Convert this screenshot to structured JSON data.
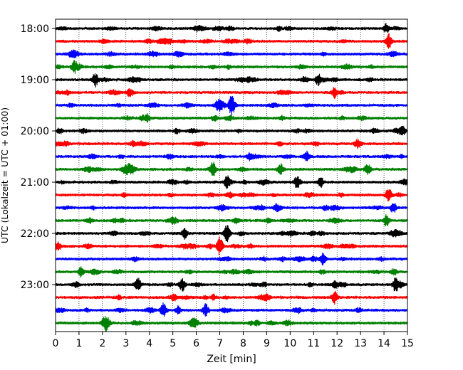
{
  "chart_data": {
    "type": "line",
    "title": "",
    "xlabel": "Zeit  [min]",
    "ylabel": "UTC (Lokalzeit = UTC + 01:00)",
    "xlim": [
      0,
      15
    ],
    "x_ticks": [
      0,
      1,
      2,
      3,
      4,
      5,
      6,
      7,
      8,
      9,
      10,
      11,
      12,
      13,
      14,
      15
    ],
    "x_grid": "dotted-vertical",
    "y_tick_labels": [
      "18:00",
      "19:00",
      "20:00",
      "21:00",
      "22:00",
      "23:00"
    ],
    "y_tick_rows": [
      0,
      4,
      8,
      12,
      16,
      20
    ],
    "row_start_times": [
      "18:00",
      "18:15",
      "18:30",
      "18:45",
      "19:00",
      "19:15",
      "19:30",
      "19:45",
      "20:00",
      "20:15",
      "20:30",
      "20:45",
      "21:00",
      "21:15",
      "21:30",
      "21:45",
      "22:00",
      "22:15",
      "22:30",
      "22:45",
      "23:00",
      "23:15",
      "23:30",
      "23:45"
    ],
    "row_colors": [
      "#000000",
      "#ff0000",
      "#0000ff",
      "#008000"
    ],
    "events": [
      {
        "row": 0,
        "t": 14.1,
        "amp": 1.2
      },
      {
        "row": 1,
        "t": 14.2,
        "amp": 2.0
      },
      {
        "row": 3,
        "t": 0.8,
        "amp": 1.6
      },
      {
        "row": 4,
        "t": 1.7,
        "amp": 1.8
      },
      {
        "row": 4,
        "t": 11.2,
        "amp": 1.4
      },
      {
        "row": 5,
        "t": 11.9,
        "amp": 1.4
      },
      {
        "row": 6,
        "t": 7.5,
        "amp": 2.6
      },
      {
        "row": 8,
        "t": 14.8,
        "amp": 1.2
      },
      {
        "row": 10,
        "t": 10.7,
        "amp": 1.3
      },
      {
        "row": 11,
        "t": 6.7,
        "amp": 2.2
      },
      {
        "row": 11,
        "t": 9.6,
        "amp": 1.4
      },
      {
        "row": 11,
        "t": 13.3,
        "amp": 1.5
      },
      {
        "row": 12,
        "t": 7.3,
        "amp": 1.4
      },
      {
        "row": 12,
        "t": 10.3,
        "amp": 1.8
      },
      {
        "row": 12,
        "t": 11.3,
        "amp": 1.3
      },
      {
        "row": 13,
        "t": 14.2,
        "amp": 1.8
      },
      {
        "row": 14,
        "t": 14.4,
        "amp": 1.4
      },
      {
        "row": 15,
        "t": 14.1,
        "amp": 1.4
      },
      {
        "row": 16,
        "t": 5.5,
        "amp": 1.5
      },
      {
        "row": 16,
        "t": 7.3,
        "amp": 2.6
      },
      {
        "row": 17,
        "t": 7.0,
        "amp": 2.4
      },
      {
        "row": 17,
        "t": 0.1,
        "amp": 1.2
      },
      {
        "row": 18,
        "t": 11.4,
        "amp": 1.6
      },
      {
        "row": 19,
        "t": 1.1,
        "amp": 1.3
      },
      {
        "row": 20,
        "t": 3.5,
        "amp": 1.8
      },
      {
        "row": 20,
        "t": 5.4,
        "amp": 1.7
      },
      {
        "row": 20,
        "t": 14.5,
        "amp": 2.0
      },
      {
        "row": 21,
        "t": 11.9,
        "amp": 1.6
      },
      {
        "row": 22,
        "t": 4.6,
        "amp": 1.9
      },
      {
        "row": 22,
        "t": 6.4,
        "amp": 1.7
      },
      {
        "row": 23,
        "t": 2.1,
        "amp": 1.6
      }
    ]
  }
}
